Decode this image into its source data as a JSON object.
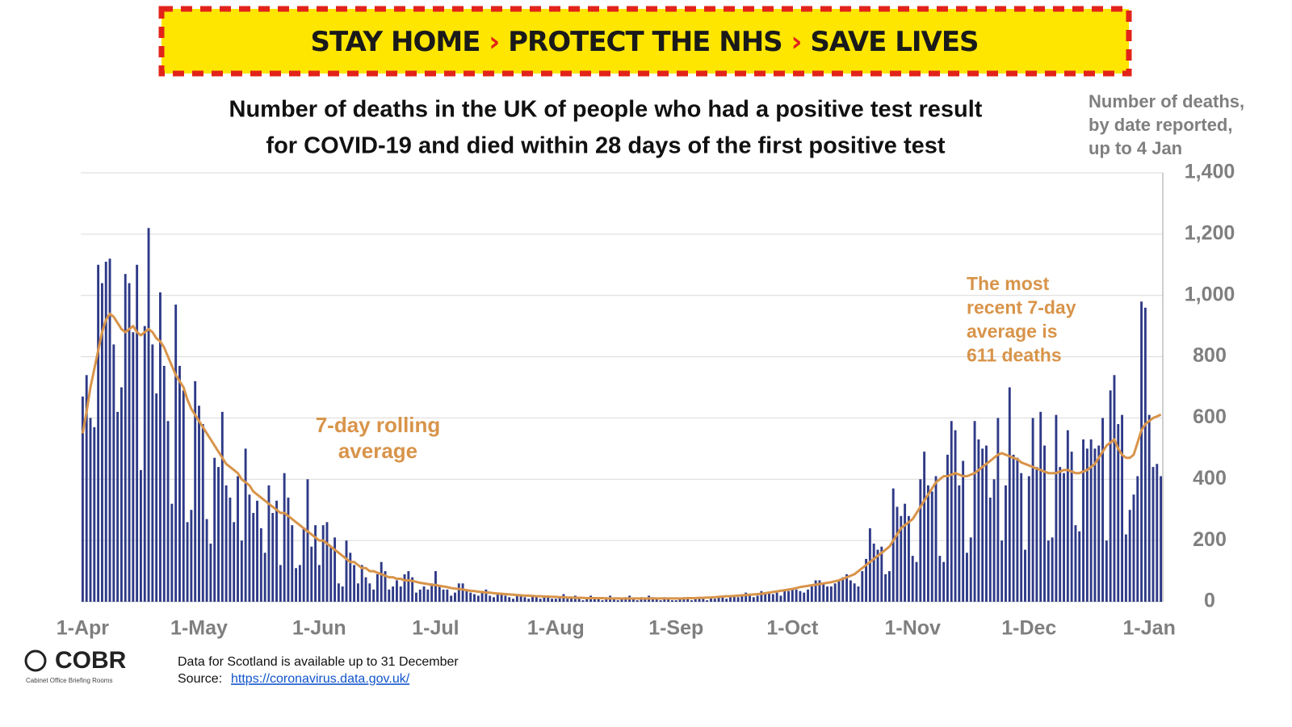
{
  "banner": {
    "items": [
      "STAY HOME",
      "PROTECT THE NHS",
      "SAVE LIVES"
    ]
  },
  "chart_data": {
    "type": "bar_line",
    "title": [
      "Number of deaths in the UK of people who had a positive test result",
      "for COVID-19 and died within 28 days of the first positive test"
    ],
    "y_axis_label": [
      "Number of deaths,",
      "by date reported,",
      "up to 4 Jan"
    ],
    "annotations": [
      {
        "lines": [
          "7-day rolling",
          "average"
        ]
      },
      {
        "lines": [
          "The most",
          "recent 7-day",
          "average is",
          "611 deaths"
        ]
      }
    ],
    "categories": [
      "1-Apr",
      null,
      null,
      null,
      null,
      null,
      null,
      null,
      null,
      null,
      null,
      null,
      null,
      null,
      null,
      null,
      null,
      null,
      null,
      null,
      null,
      null,
      null,
      null,
      null,
      null,
      null,
      null,
      null,
      null,
      "1-May",
      null,
      null,
      null,
      null,
      null,
      null,
      null,
      null,
      null,
      null,
      null,
      null,
      null,
      null,
      null,
      null,
      null,
      null,
      null,
      null,
      null,
      null,
      null,
      null,
      null,
      null,
      null,
      null,
      null,
      null,
      "1-Jun",
      null,
      null,
      null,
      null,
      null,
      null,
      null,
      null,
      null,
      null,
      null,
      null,
      null,
      null,
      null,
      null,
      null,
      null,
      null,
      null,
      null,
      null,
      null,
      null,
      null,
      null,
      null,
      null,
      null,
      "1-Jul",
      null,
      null,
      null,
      null,
      null,
      null,
      null,
      null,
      null,
      null,
      null,
      null,
      null,
      null,
      null,
      null,
      null,
      null,
      null,
      null,
      null,
      null,
      null,
      null,
      null,
      null,
      null,
      null,
      null,
      null,
      "1-Aug",
      null,
      null,
      null,
      null,
      null,
      null,
      null,
      null,
      null,
      null,
      null,
      null,
      null,
      null,
      null,
      null,
      null,
      null,
      null,
      null,
      null,
      null,
      null,
      null,
      null,
      null,
      null,
      null,
      null,
      null,
      "1-Sep",
      null,
      null,
      null,
      null,
      null,
      null,
      null,
      null,
      null,
      null,
      null,
      null,
      null,
      null,
      null,
      null,
      null,
      null,
      null,
      null,
      null,
      null,
      null,
      null,
      null,
      null,
      null,
      null,
      null,
      "1-Oct",
      null,
      null,
      null,
      null,
      null,
      null,
      null,
      null,
      null,
      null,
      null,
      null,
      null,
      null,
      null,
      null,
      null,
      null,
      null,
      null,
      null,
      null,
      null,
      null,
      null,
      null,
      null,
      null,
      null,
      null,
      "1-Nov",
      null,
      null,
      null,
      null,
      null,
      null,
      null,
      null,
      null,
      null,
      null,
      null,
      null,
      null,
      null,
      null,
      null,
      null,
      null,
      null,
      null,
      null,
      null,
      null,
      null,
      null,
      null,
      null,
      null,
      "1-Dec",
      null,
      null,
      null,
      null,
      null,
      null,
      null,
      null,
      null,
      null,
      null,
      null,
      null,
      null,
      null,
      null,
      null,
      null,
      null,
      null,
      null,
      null,
      null,
      null,
      null,
      null,
      null,
      null,
      null,
      null,
      "1-Jan",
      null,
      null,
      null
    ],
    "series": [
      {
        "kind": "bar",
        "color": "#2e3a87",
        "values": [
          670,
          740,
          600,
          570,
          1100,
          1040,
          1110,
          1120,
          840,
          620,
          700,
          1070,
          1040,
          880,
          1100,
          430,
          900,
          1220,
          840,
          680,
          1010,
          770,
          590,
          320,
          970,
          770,
          690,
          260,
          300,
          720,
          640,
          580,
          270,
          190,
          470,
          440,
          620,
          380,
          340,
          260,
          410,
          200,
          500,
          350,
          290,
          330,
          240,
          160,
          380,
          290,
          330,
          120,
          420,
          340,
          250,
          110,
          120,
          240,
          400,
          180,
          250,
          120,
          250,
          260,
          180,
          210,
          60,
          50,
          200,
          160,
          120,
          60,
          120,
          80,
          60,
          40,
          90,
          130,
          100,
          40,
          50,
          70,
          50,
          90,
          100,
          80,
          30,
          40,
          50,
          40,
          60,
          100,
          50,
          40,
          40,
          20,
          30,
          60,
          60,
          40,
          30,
          25,
          20,
          30,
          40,
          20,
          15,
          30,
          25,
          20,
          15,
          10,
          25,
          20,
          15,
          10,
          20,
          15,
          10,
          20,
          15,
          10,
          10,
          15,
          25,
          10,
          15,
          20,
          10,
          5,
          10,
          20,
          15,
          10,
          5,
          15,
          20,
          10,
          5,
          10,
          15,
          20,
          10,
          5,
          15,
          10,
          20,
          15,
          10,
          5,
          15,
          10,
          5,
          5,
          10,
          15,
          10,
          5,
          10,
          15,
          10,
          5,
          15,
          10,
          15,
          20,
          10,
          15,
          20,
          15,
          25,
          30,
          20,
          15,
          20,
          35,
          30,
          30,
          25,
          30,
          20,
          40,
          35,
          40,
          40,
          35,
          30,
          40,
          50,
          70,
          70,
          60,
          50,
          50,
          60,
          70,
          80,
          90,
          70,
          60,
          50,
          100,
          140,
          240,
          190,
          170,
          180,
          90,
          100,
          370,
          310,
          280,
          320,
          280,
          150,
          130,
          400,
          490,
          380,
          360,
          410,
          150,
          130,
          480,
          590,
          560,
          380,
          460,
          160,
          210,
          590,
          530,
          500,
          510,
          340,
          400,
          600,
          200,
          380,
          700,
          480,
          470,
          420,
          170,
          410,
          600,
          440,
          620,
          510,
          200,
          210,
          610,
          440,
          420,
          560,
          490,
          250,
          230,
          530,
          500,
          530,
          500,
          510,
          600,
          200,
          690,
          740,
          580,
          610,
          220,
          300,
          350,
          410,
          980,
          960,
          610,
          440,
          450,
          410
        ]
      },
      {
        "kind": "line",
        "color": "#d8944a",
        "values": [
          550,
          620,
          700,
          760,
          820,
          880,
          920,
          940,
          930,
          910,
          890,
          880,
          890,
          900,
          880,
          870,
          880,
          890,
          880,
          860,
          850,
          830,
          800,
          770,
          740,
          720,
          700,
          660,
          630,
          610,
          590,
          570,
          550,
          530,
          510,
          490,
          470,
          450,
          440,
          430,
          420,
          400,
          390,
          380,
          360,
          350,
          340,
          330,
          320,
          310,
          300,
          290,
          290,
          280,
          270,
          260,
          250,
          240,
          230,
          220,
          210,
          200,
          200,
          190,
          180,
          170,
          160,
          150,
          140,
          130,
          130,
          120,
          110,
          110,
          100,
          100,
          95,
          90,
          85,
          80,
          80,
          75,
          75,
          70,
          70,
          68,
          65,
          62,
          60,
          58,
          55,
          55,
          52,
          50,
          48,
          45,
          43,
          42,
          40,
          38,
          36,
          35,
          33,
          32,
          30,
          30,
          28,
          27,
          26,
          25,
          24,
          23,
          22,
          21,
          20,
          20,
          19,
          18,
          18,
          17,
          17,
          16,
          16,
          15,
          15,
          14,
          14,
          13,
          13,
          13,
          12,
          12,
          12,
          12,
          12,
          11,
          11,
          11,
          11,
          11,
          11,
          11,
          11,
          11,
          11,
          11,
          11,
          11,
          11,
          11,
          11,
          11,
          11,
          11,
          11,
          11,
          12,
          12,
          12,
          13,
          13,
          14,
          14,
          15,
          16,
          17,
          18,
          18,
          19,
          20,
          21,
          22,
          23,
          24,
          25,
          26,
          28,
          30,
          32,
          34,
          36,
          38,
          40,
          42,
          45,
          48,
          50,
          52,
          54,
          56,
          58,
          60,
          62,
          64,
          67,
          70,
          75,
          80,
          85,
          90,
          100,
          110,
          120,
          130,
          140,
          150,
          160,
          170,
          180,
          200,
          220,
          240,
          250,
          260,
          270,
          290,
          310,
          330,
          350,
          370,
          390,
          400,
          410,
          410,
          415,
          420,
          415,
          410,
          410,
          415,
          420,
          430,
          440,
          450,
          460,
          470,
          480,
          485,
          480,
          475,
          470,
          465,
          455,
          450,
          445,
          440,
          435,
          430,
          425,
          420,
          420,
          420,
          425,
          430,
          430,
          425,
          420,
          420,
          425,
          430,
          440,
          450,
          470,
          490,
          510,
          520,
          530,
          500,
          480,
          470,
          470,
          480,
          520,
          560,
          580,
          590,
          600,
          605,
          611
        ]
      }
    ],
    "ylim": [
      0,
      1400
    ],
    "yticks": [
      0,
      200,
      400,
      600,
      800,
      {
        "value": 1000,
        "label": "1,000"
      },
      {
        "value": 1200,
        "label": "1,200"
      },
      {
        "value": 1400,
        "label": "1,400"
      }
    ],
    "grid": true
  },
  "footer": {
    "logo": "COBR",
    "logo_sub": "Cabinet Office Briefing Rooms",
    "note": "Data for Scotland is available up to 31 December",
    "source_label": "Source:",
    "source_url": "https://coronavirus.data.gov.uk/"
  }
}
